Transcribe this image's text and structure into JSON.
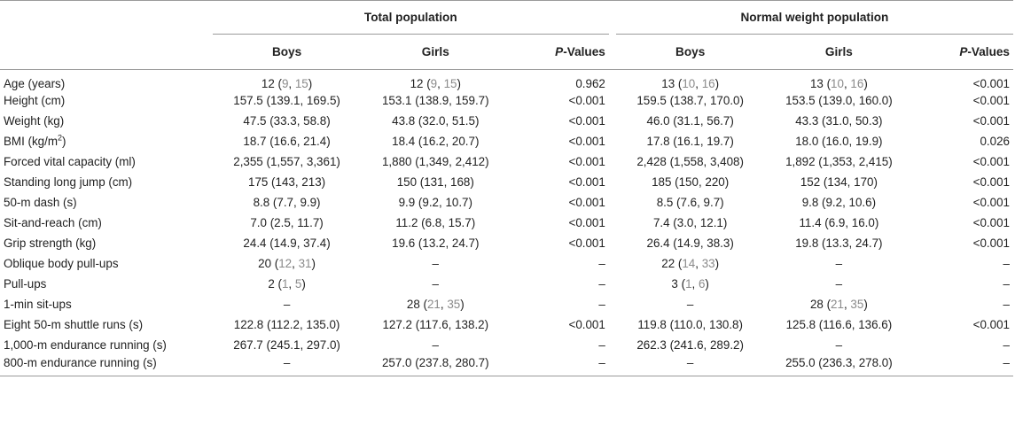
{
  "header": {
    "group_total": "Total population",
    "group_normal": "Normal weight population",
    "boys": "Boys",
    "girls": "Girls",
    "p_italic": "P",
    "p_rest": "-Values"
  },
  "rows": [
    {
      "label": "Age (years)",
      "tb": [
        "12 (",
        "9",
        ", ",
        "15",
        ")"
      ],
      "tg": [
        "12 (",
        "9",
        ", ",
        "15",
        ")"
      ],
      "tp": "0.962",
      "nb": [
        "13 (",
        "10",
        ", ",
        "16",
        ")"
      ],
      "ng": [
        "13 (",
        "10",
        ", ",
        "16",
        ")"
      ],
      "np": "<0.001"
    },
    {
      "label": "Height (cm)",
      "tb": "157.5 (139.1, 169.5)",
      "tg": "153.1 (138.9, 159.7)",
      "tp": "<0.001",
      "nb": "159.5 (138.7, 170.0)",
      "ng": "153.5 (139.0, 160.0)",
      "np": "<0.001"
    },
    {
      "label": "Weight (kg)",
      "tb": "47.5 (33.3, 58.8)",
      "tg": "43.8 (32.0, 51.5)",
      "tp": "<0.001",
      "nb": "46.0 (31.1, 56.7)",
      "ng": "43.3 (31.0, 50.3)",
      "np": "<0.001"
    },
    {
      "label": "BMI (kg/m",
      "label_sup": "2",
      "label_tail": ")",
      "tb": "18.7 (16.6, 21.4)",
      "tg": "18.4 (16.2, 20.7)",
      "tp": "<0.001",
      "nb": "17.8 (16.1, 19.7)",
      "ng": "18.0 (16.0, 19.9)",
      "np": "0.026"
    },
    {
      "label": "Forced vital capacity (ml)",
      "tb": "2,355 (1,557, 3,361)",
      "tg": "1,880 (1,349, 2,412)",
      "tp": "<0.001",
      "nb": "2,428 (1,558, 3,408)",
      "ng": "1,892 (1,353, 2,415)",
      "np": "<0.001"
    },
    {
      "label": "Standing long jump (cm)",
      "tb": "175 (143, 213)",
      "tg": "150 (131, 168)",
      "tp": "<0.001",
      "nb": "185 (150, 220)",
      "ng": "152 (134, 170)",
      "np": "<0.001"
    },
    {
      "label": "50-m dash (s)",
      "tb": "8.8 (7.7, 9.9)",
      "tg": "9.9 (9.2, 10.7)",
      "tp": "<0.001",
      "nb": "8.5 (7.6, 9.7)",
      "ng": "9.8 (9.2, 10.6)",
      "np": "<0.001"
    },
    {
      "label": "Sit-and-reach (cm)",
      "tb": "7.0 (2.5, 11.7)",
      "tg": "11.2 (6.8, 15.7)",
      "tp": "<0.001",
      "nb": "7.4 (3.0, 12.1)",
      "ng": "11.4 (6.9, 16.0)",
      "np": "<0.001"
    },
    {
      "label": "Grip strength (kg)",
      "tb": "24.4 (14.9, 37.4)",
      "tg": "19.6 (13.2, 24.7)",
      "tp": "<0.001",
      "nb": "26.4 (14.9, 38.3)",
      "ng": "19.8 (13.3, 24.7)",
      "np": "<0.001"
    },
    {
      "label": "Oblique body pull-ups",
      "tb": [
        "20 (",
        "12",
        ", ",
        "31",
        ")"
      ],
      "tg": "–",
      "tp": "–",
      "nb": [
        "22 (",
        "14",
        ", ",
        "33",
        ")"
      ],
      "ng": "–",
      "np": "–"
    },
    {
      "label": "Pull-ups",
      "tb": [
        "2 (",
        "1",
        ", ",
        "5",
        ")"
      ],
      "tg": "–",
      "tp": "–",
      "nb": [
        "3 (",
        "1",
        ", ",
        "6",
        ")"
      ],
      "ng": "–",
      "np": "–"
    },
    {
      "label": "1-min sit-ups",
      "tb": "–",
      "tg": [
        "28 (",
        "21",
        ", ",
        "35",
        ")"
      ],
      "tp": "–",
      "nb": "–",
      "ng": [
        "28 (",
        "21",
        ", ",
        "35",
        ")"
      ],
      "np": "–"
    },
    {
      "label": "Eight 50-m shuttle runs (s)",
      "tb": "122.8 (112.2, 135.0)",
      "tg": "127.2 (117.6, 138.2)",
      "tp": "<0.001",
      "nb": "119.8 (110.0, 130.8)",
      "ng": "125.8 (116.6, 136.6)",
      "np": "<0.001"
    },
    {
      "label": "1,000-m endurance running (s)",
      "tb": "267.7 (245.1, 297.0)",
      "tg": "–",
      "tp": "–",
      "nb": "262.3 (241.6, 289.2)",
      "ng": "–",
      "np": "–"
    },
    {
      "label": "800-m endurance running (s)",
      "tb": "–",
      "tg": "257.0 (237.8, 280.7)",
      "tp": "–",
      "nb": "–",
      "ng": "255.0 (236.3, 278.0)",
      "np": "–"
    }
  ]
}
